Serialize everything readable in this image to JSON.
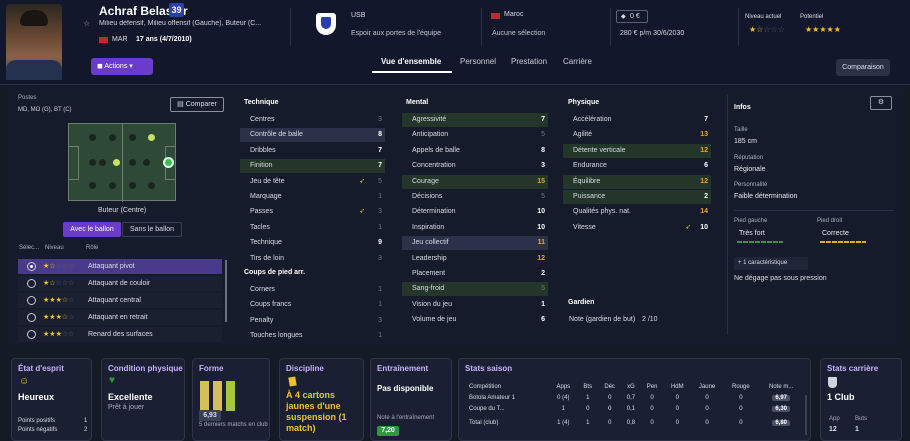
{
  "player": {
    "name": "Achraf Belasfar",
    "number": "39",
    "positions": "Milieu défensif, Milieu offensif (Gauche), Buteur (C...",
    "nation_code": "MAR",
    "age": "17 ans (4/7/2010)"
  },
  "club": {
    "name": "USB",
    "status": "Espoir aux portes de l'équipe"
  },
  "nation": {
    "name": "Maroc",
    "status": "Aucune sélection"
  },
  "contract": {
    "value": "0 €",
    "wage": "280 € p/m",
    "expiry": "30/6/2030"
  },
  "ability": {
    "current_label": "Niveau actuel",
    "potential_label": "Potentiel",
    "current_stars": 1.5,
    "potential_stars": 5
  },
  "actions_label": "Actions",
  "tabs": [
    "Vue d'ensemble",
    "Personnel",
    "Prestation",
    "Carrière"
  ],
  "comparison_label": "Comparaison",
  "positions": {
    "title": "Postes",
    "list": "MD, MO (G), BT (C)",
    "compare_label": "Comparer",
    "role_caption": "Buteur (Centre)",
    "toggle_with": "Avec le ballon",
    "toggle_without": "Sans le ballon",
    "col_select": "Sélec...",
    "col_level": "Niveau",
    "col_role": "Rôle",
    "roles": [
      {
        "name": "Attaquant pivot",
        "stars": 1.5,
        "selected": true
      },
      {
        "name": "Attaquant de couloir",
        "stars": 1.5,
        "selected": false
      },
      {
        "name": "Attaquant central",
        "stars": 3.5,
        "selected": false
      },
      {
        "name": "Attaquant en retrait",
        "stars": 3.5,
        "selected": false
      },
      {
        "name": "Renard des surfaces",
        "stars": 3,
        "selected": false
      }
    ]
  },
  "technique": {
    "title": "Technique",
    "attrs": [
      [
        "Centres",
        "3"
      ],
      [
        "Contrôle de balle",
        "8"
      ],
      [
        "Dribbles",
        "7"
      ],
      [
        "Finition",
        "7"
      ],
      [
        "Jeu de tête",
        "5"
      ],
      [
        "Marquage",
        "1"
      ],
      [
        "Passes",
        "3"
      ],
      [
        "Tacles",
        "1"
      ],
      [
        "Technique",
        "9"
      ],
      [
        "Tirs de loin",
        "3"
      ]
    ]
  },
  "setpieces": {
    "title": "Coups de pied arr.",
    "attrs": [
      [
        "Corners",
        "1"
      ],
      [
        "Coups francs",
        "1"
      ],
      [
        "Penalty",
        "3"
      ],
      [
        "Touches longues",
        "1"
      ]
    ]
  },
  "mental": {
    "title": "Mental",
    "attrs": [
      [
        "Agressivité",
        "7"
      ],
      [
        "Anticipation",
        "5"
      ],
      [
        "Appels de balle",
        "8"
      ],
      [
        "Concentration",
        "3"
      ],
      [
        "Courage",
        "15"
      ],
      [
        "Décisions",
        "5"
      ],
      [
        "Détermination",
        "10"
      ],
      [
        "Inspiration",
        "10"
      ],
      [
        "Jeu collectif",
        "11"
      ],
      [
        "Leadership",
        "12"
      ],
      [
        "Placement",
        "2"
      ],
      [
        "Sang-froid",
        "5"
      ],
      [
        "Vision du jeu",
        "1"
      ],
      [
        "Volume de jeu",
        "6"
      ]
    ]
  },
  "physical": {
    "title": "Physique",
    "attrs": [
      [
        "Accélération",
        "7"
      ],
      [
        "Agilité",
        "13"
      ],
      [
        "Détente verticale",
        "12"
      ],
      [
        "Endurance",
        "6"
      ],
      [
        "Équilibre",
        "12"
      ],
      [
        "Puissance",
        "2"
      ],
      [
        "Qualités phys. nat.",
        "14"
      ],
      [
        "Vitesse",
        "10"
      ]
    ]
  },
  "goalkeeper": {
    "title": "Gardien",
    "label": "Note (gardien de but)",
    "value": "2 /10"
  },
  "info": {
    "title": "Infos",
    "height_label": "Taille",
    "height": "185 cm",
    "rep_label": "Réputation",
    "rep": "Régionale",
    "pers_label": "Personnalité",
    "pers": "Faible détermination",
    "lf_label": "Pied gauche",
    "lf": "Très fort",
    "rf_label": "Pied droit",
    "rf": "Correcte",
    "trait_btn": "1 caractéristique",
    "trait": "Ne dégage pas sous pression"
  },
  "cards": {
    "morale": {
      "title": "État d'esprit",
      "value": "Heureux",
      "pos_label": "Points positifs",
      "pos": "1",
      "neg_label": "Points négatifs",
      "neg": "2"
    },
    "condition": {
      "title": "Condition physique",
      "value": "Excellente",
      "sub": "Prêt à jouer"
    },
    "form": {
      "title": "Forme",
      "avg": "6,93",
      "sub": "5 derniers matchs en club"
    },
    "discipline": {
      "title": "Discipline",
      "value": "À 4 cartons jaunes d'une suspension (1 match)"
    },
    "training": {
      "title": "Entraînement",
      "value": "Pas disponible",
      "note_label": "Note à l'entraînement",
      "note": "7,20"
    },
    "season": {
      "title": "Stats saison",
      "headers": [
        "Compétition",
        "Apps",
        "Bts",
        "Déc",
        "xG",
        "Pen",
        "HdM",
        "Jaune",
        "Rouge",
        "Note m..."
      ],
      "rows": [
        [
          "Botola Amateur 1",
          "0 (4)",
          "1",
          "0",
          "0,7",
          "0",
          "0",
          "0",
          "0",
          "6,97"
        ],
        [
          "Coupe du T...",
          "1",
          "0",
          "0",
          "0,1",
          "0",
          "0",
          "0",
          "0",
          "6,30"
        ],
        [
          "Total (club)",
          "1 (4)",
          "1",
          "0",
          "0,8",
          "0",
          "0",
          "0",
          "0",
          "6,80"
        ]
      ]
    },
    "career": {
      "title": "Stats carrière",
      "clubs": "1 Club",
      "app_label": "App",
      "apps": "12",
      "goals_label": "Buts",
      "goals": "1"
    }
  },
  "colors": {
    "accent": "#6a3cc9",
    "green": "#2e9a3a",
    "orange": "#f0a226",
    "yellow": "#f0c22a"
  }
}
